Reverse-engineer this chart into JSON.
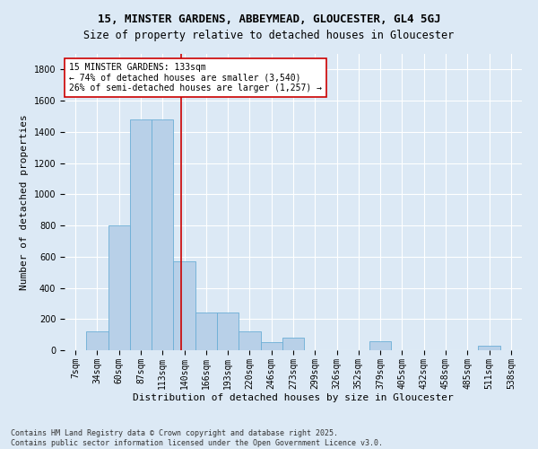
{
  "title_line1": "15, MINSTER GARDENS, ABBEYMEAD, GLOUCESTER, GL4 5GJ",
  "title_line2": "Size of property relative to detached houses in Gloucester",
  "xlabel": "Distribution of detached houses by size in Gloucester",
  "ylabel": "Number of detached properties",
  "categories": [
    "7sqm",
    "34sqm",
    "60sqm",
    "87sqm",
    "113sqm",
    "140sqm",
    "166sqm",
    "193sqm",
    "220sqm",
    "246sqm",
    "273sqm",
    "299sqm",
    "326sqm",
    "352sqm",
    "379sqm",
    "405sqm",
    "432sqm",
    "458sqm",
    "485sqm",
    "511sqm",
    "538sqm"
  ],
  "values": [
    0,
    120,
    800,
    1480,
    1480,
    570,
    240,
    240,
    120,
    50,
    80,
    0,
    0,
    0,
    60,
    0,
    0,
    0,
    0,
    30,
    0
  ],
  "bar_color": "#b8d0e8",
  "bar_edge_color": "#6baed6",
  "vline_x": 4.85,
  "vline_color": "#cc0000",
  "annotation_text": "15 MINSTER GARDENS: 133sqm\n← 74% of detached houses are smaller (3,540)\n26% of semi-detached houses are larger (1,257) →",
  "annotation_box_color": "#ffffff",
  "annotation_box_edge": "#cc0000",
  "ylim": [
    0,
    1900
  ],
  "yticks": [
    0,
    200,
    400,
    600,
    800,
    1000,
    1200,
    1400,
    1600,
    1800
  ],
  "bg_color": "#dce9f5",
  "plot_bg_color": "#dce9f5",
  "footer_line1": "Contains HM Land Registry data © Crown copyright and database right 2025.",
  "footer_line2": "Contains public sector information licensed under the Open Government Licence v3.0.",
  "title_fontsize": 9,
  "subtitle_fontsize": 8.5,
  "xlabel_fontsize": 8,
  "ylabel_fontsize": 8,
  "tick_fontsize": 7,
  "footer_fontsize": 6,
  "ann_fontsize": 7
}
